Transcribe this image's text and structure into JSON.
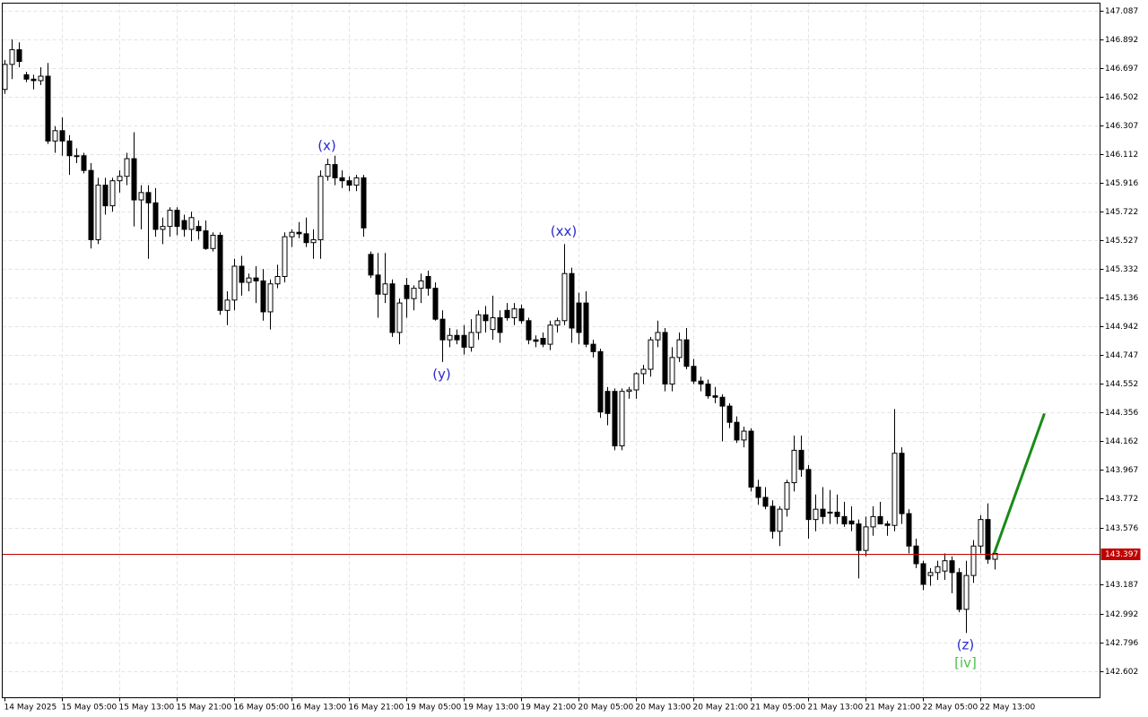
{
  "chart_data": {
    "type": "candlestick",
    "categories": [
      "14 May 2025",
      null,
      null,
      null,
      null,
      null,
      null,
      null,
      "15 May 05:00",
      null,
      null,
      null,
      null,
      null,
      null,
      null,
      "15 May 13:00",
      null,
      null,
      null,
      null,
      null,
      null,
      null,
      "15 May 21:00",
      null,
      null,
      null,
      null,
      null,
      null,
      null,
      "16 May 05:00",
      null,
      null,
      null,
      null,
      null,
      null,
      null,
      "16 May 13:00",
      null,
      null,
      null,
      null,
      null,
      null,
      null,
      "16 May 21:00",
      null,
      null,
      null,
      null,
      null,
      null,
      null,
      "19 May 05:00",
      null,
      null,
      null,
      null,
      null,
      null,
      null,
      "19 May 13:00",
      null,
      null,
      null,
      null,
      null,
      null,
      null,
      "19 May 21:00",
      null,
      null,
      null,
      null,
      null,
      null,
      null,
      "20 May 05:00",
      null,
      null,
      null,
      null,
      null,
      null,
      null,
      "20 May 13:00",
      null,
      null,
      null,
      null,
      null,
      null,
      null,
      "20 May 21:00",
      null,
      null,
      null,
      null,
      null,
      null,
      null,
      "21 May 05:00",
      null,
      null,
      null,
      null,
      null,
      null,
      null,
      "21 May 13:00",
      null,
      null,
      null,
      null,
      null,
      null,
      null,
      "21 May 21:00",
      null,
      null,
      null,
      null,
      null,
      null,
      null,
      "22 May 05:00",
      null,
      null,
      null,
      null,
      null,
      null,
      null,
      "22 May 13:00",
      null,
      null
    ],
    "open": [
      146.55,
      146.72,
      146.82,
      146.65,
      146.62,
      146.61,
      146.64,
      146.2,
      146.27,
      146.2,
      146.1,
      146.1,
      146.0,
      145.53,
      145.9,
      145.76,
      145.93,
      145.96,
      146.08,
      145.8,
      145.85,
      145.78,
      145.6,
      145.62,
      145.73,
      145.66,
      145.6,
      145.62,
      145.59,
      145.47,
      145.56,
      145.05,
      145.12,
      145.35,
      145.24,
      145.27,
      145.25,
      145.04,
      145.23,
      145.28,
      145.55,
      145.58,
      145.57,
      145.51,
      145.53,
      145.96,
      146.04,
      145.95,
      145.93,
      145.9,
      145.95,
      145.43,
      145.29,
      145.16,
      145.23,
      144.9,
      145.22,
      145.13,
      145.2,
      145.28,
      145.2,
      144.99,
      144.85,
      144.88,
      144.88,
      144.8,
      144.9,
      145.02,
      144.92,
      145.0,
      145.05,
      145.0,
      145.06,
      144.98,
      144.85,
      144.86,
      144.82,
      144.95,
      144.98,
      145.3,
      145.1,
      145.1,
      144.82,
      144.77,
      144.5,
      144.5,
      144.13,
      144.5,
      144.51,
      144.62,
      144.65,
      144.85,
      144.9,
      144.55,
      144.73,
      144.85,
      144.67,
      144.57,
      144.55,
      144.47,
      144.46,
      144.4,
      144.29,
      144.17,
      144.23,
      143.85,
      143.78,
      143.72,
      143.55,
      143.7,
      143.88,
      144.1,
      143.97,
      143.63,
      143.7,
      143.68,
      143.68,
      143.65,
      143.62,
      143.6,
      143.42,
      143.58,
      143.65,
      143.6,
      143.59,
      144.08,
      143.67,
      143.45,
      143.33,
      143.25,
      143.27,
      143.28,
      143.35,
      143.27,
      143.02,
      143.25,
      143.45,
      143.63,
      143.36
    ],
    "high": [
      146.75,
      146.89,
      146.87,
      146.67,
      146.65,
      146.7,
      146.73,
      146.3,
      146.36,
      146.24,
      146.15,
      146.12,
      146.05,
      145.95,
      145.95,
      145.95,
      146.0,
      146.12,
      146.26,
      145.9,
      145.9,
      145.88,
      145.68,
      145.75,
      145.75,
      145.7,
      145.72,
      145.66,
      145.66,
      145.58,
      145.58,
      145.18,
      145.4,
      145.42,
      145.3,
      145.35,
      145.33,
      145.26,
      145.36,
      145.58,
      145.6,
      145.65,
      145.68,
      145.6,
      146.0,
      146.08,
      146.1,
      146.0,
      145.96,
      145.97,
      145.97,
      145.45,
      145.44,
      145.44,
      145.26,
      145.13,
      145.27,
      145.22,
      145.3,
      145.32,
      145.24,
      145.05,
      144.93,
      144.92,
      144.95,
      144.99,
      145.05,
      145.08,
      145.15,
      145.05,
      145.1,
      145.1,
      145.09,
      145.0,
      144.88,
      144.9,
      144.98,
      145.0,
      145.5,
      145.34,
      145.17,
      145.18,
      144.85,
      144.79,
      144.53,
      144.52,
      144.52,
      144.53,
      144.63,
      144.68,
      144.87,
      144.98,
      144.93,
      144.8,
      144.9,
      144.93,
      144.72,
      144.6,
      144.58,
      144.53,
      144.48,
      144.42,
      144.33,
      144.26,
      144.25,
      143.9,
      143.85,
      143.76,
      143.72,
      143.9,
      144.2,
      144.2,
      144.0,
      143.8,
      143.85,
      143.83,
      143.8,
      143.75,
      143.72,
      143.63,
      143.65,
      143.72,
      143.75,
      143.62,
      144.38,
      144.12,
      143.7,
      143.5,
      143.35,
      143.3,
      143.35,
      143.4,
      143.38,
      143.3,
      143.35,
      143.49,
      143.66,
      143.74,
      143.44
    ],
    "low": [
      146.52,
      146.62,
      146.7,
      146.6,
      146.55,
      146.58,
      146.18,
      146.12,
      146.1,
      145.97,
      146.05,
      145.98,
      145.47,
      145.5,
      145.7,
      145.72,
      145.85,
      145.9,
      145.62,
      145.6,
      145.4,
      145.55,
      145.5,
      145.55,
      145.56,
      145.55,
      145.52,
      145.53,
      145.46,
      145.45,
      145.02,
      144.95,
      145.05,
      145.15,
      145.18,
      145.1,
      144.98,
      144.92,
      145.2,
      145.24,
      145.48,
      145.54,
      145.48,
      145.4,
      145.4,
      145.93,
      145.9,
      145.88,
      145.86,
      145.86,
      145.55,
      145.27,
      145.0,
      145.1,
      144.87,
      144.82,
      145.0,
      145.05,
      145.1,
      145.15,
      144.98,
      144.7,
      144.8,
      144.82,
      144.75,
      144.77,
      144.85,
      144.9,
      144.85,
      144.83,
      144.98,
      144.95,
      144.96,
      144.82,
      144.8,
      144.8,
      144.78,
      144.9,
      144.95,
      144.83,
      144.82,
      144.8,
      144.73,
      144.32,
      144.27,
      144.1,
      144.1,
      144.45,
      144.45,
      144.55,
      144.6,
      144.8,
      144.5,
      144.5,
      144.7,
      144.65,
      144.55,
      144.5,
      144.45,
      144.42,
      144.16,
      144.25,
      144.15,
      144.12,
      143.82,
      143.73,
      143.7,
      143.5,
      143.45,
      143.65,
      143.82,
      143.92,
      143.5,
      143.55,
      143.6,
      143.6,
      143.6,
      143.58,
      143.55,
      143.23,
      143.38,
      143.52,
      143.6,
      143.52,
      143.55,
      143.6,
      143.4,
      143.3,
      143.15,
      143.18,
      143.22,
      143.22,
      143.13,
      143.0,
      142.86,
      143.2,
      143.4,
      143.33,
      143.29
    ],
    "close": [
      146.72,
      146.82,
      146.74,
      146.62,
      146.61,
      146.64,
      146.2,
      146.27,
      146.2,
      146.1,
      146.1,
      146.0,
      145.53,
      145.9,
      145.76,
      145.93,
      145.96,
      146.08,
      145.8,
      145.85,
      145.78,
      145.6,
      145.62,
      145.73,
      145.62,
      145.6,
      145.68,
      145.59,
      145.47,
      145.56,
      145.05,
      145.12,
      145.35,
      145.24,
      145.27,
      145.25,
      145.04,
      145.23,
      145.28,
      145.55,
      145.58,
      145.57,
      145.51,
      145.53,
      145.96,
      146.04,
      145.95,
      145.93,
      145.9,
      145.95,
      145.61,
      145.29,
      145.16,
      145.23,
      144.9,
      145.1,
      145.13,
      145.2,
      145.25,
      145.2,
      144.99,
      144.85,
      144.88,
      144.85,
      144.8,
      144.9,
      145.02,
      144.98,
      145.0,
      144.9,
      145.0,
      145.06,
      144.98,
      144.85,
      144.84,
      144.82,
      144.95,
      144.98,
      145.3,
      144.93,
      144.9,
      144.82,
      144.77,
      144.36,
      144.35,
      144.13,
      144.5,
      144.51,
      144.62,
      144.65,
      144.85,
      144.9,
      144.55,
      144.73,
      144.85,
      144.67,
      144.57,
      144.55,
      144.47,
      144.46,
      144.4,
      144.29,
      144.17,
      144.23,
      143.85,
      143.78,
      143.72,
      143.55,
      143.7,
      143.88,
      144.1,
      143.97,
      143.63,
      143.7,
      143.65,
      143.68,
      143.65,
      143.6,
      143.6,
      143.42,
      143.58,
      143.65,
      143.6,
      143.59,
      144.08,
      143.67,
      143.45,
      143.33,
      143.19,
      143.27,
      143.31,
      143.35,
      143.27,
      143.02,
      143.25,
      143.45,
      143.63,
      143.36,
      143.4
    ],
    "up_color": "#ffffff",
    "down_color": "#000000",
    "ylim": [
      142.42,
      147.136
    ],
    "yticks": [
      147.087,
      146.892,
      146.697,
      146.502,
      146.307,
      146.112,
      145.916,
      145.722,
      145.527,
      145.332,
      145.136,
      144.942,
      144.747,
      144.552,
      144.356,
      144.162,
      143.967,
      143.772,
      143.576,
      143.187,
      142.992,
      142.796,
      142.602
    ],
    "grid": true,
    "last_price": 143.397,
    "last_price_color": "#c00000",
    "annotations": [
      {
        "text": "(x)",
        "color": "#2a2acc"
      },
      {
        "text": "(y)",
        "color": "#2a2acc"
      },
      {
        "text": "(xx)",
        "color": "#2a2acc"
      },
      {
        "text": "(z)",
        "color": "#2a2acc"
      },
      {
        "text": "[iv]",
        "color": "#4cc04c"
      }
    ],
    "forecast": {
      "color": "#1a8a1a",
      "values": [
        143.4,
        144.35
      ]
    }
  }
}
